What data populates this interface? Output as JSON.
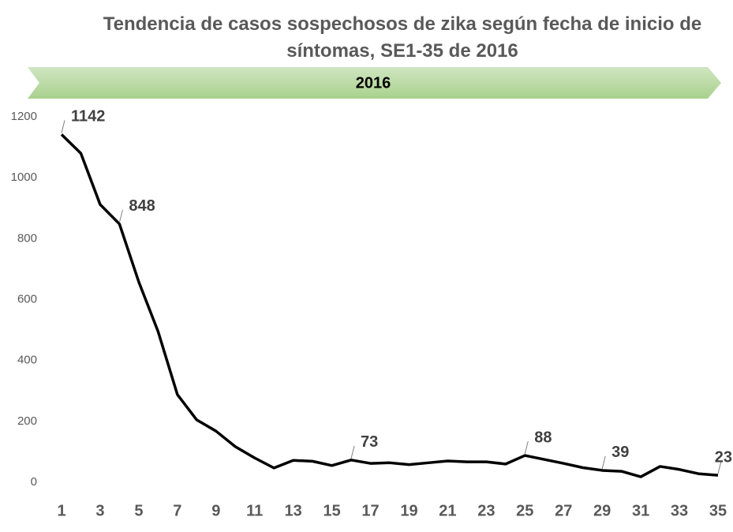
{
  "chart_data": {
    "type": "line",
    "title": "Tendencia de casos sospechosos de zika según fecha de inicio de síntomas, SE1-35 de 2016",
    "banner": "2016",
    "banner_color": "#a9d18e",
    "categories": [
      "1",
      null,
      "3",
      null,
      "5",
      null,
      "7",
      null,
      "9",
      null,
      "11",
      null,
      "13",
      null,
      "15",
      null,
      "17",
      null,
      "19",
      null,
      "21",
      null,
      "23",
      null,
      "25",
      null,
      "27",
      null,
      "29",
      null,
      "31",
      null,
      "33",
      null,
      "35"
    ],
    "series": [
      {
        "name": "Casos",
        "color": "#000000",
        "values": [
          1142,
          1080,
          912,
          848,
          658,
          495,
          288,
          205,
          168,
          117,
          80,
          47,
          72,
          69,
          55,
          73,
          62,
          64,
          58,
          64,
          70,
          67,
          67,
          60,
          88,
          75,
          62,
          48,
          39,
          36,
          18,
          52,
          42,
          28,
          23
        ],
        "value_labels": [
          "1142",
          null,
          null,
          "848",
          null,
          null,
          null,
          null,
          null,
          null,
          null,
          null,
          null,
          null,
          null,
          "73",
          null,
          null,
          null,
          null,
          null,
          null,
          null,
          null,
          "88",
          null,
          null,
          null,
          "39",
          null,
          null,
          null,
          null,
          null,
          "23"
        ]
      }
    ],
    "ylim": [
      0,
      1200
    ],
    "yticks": [
      0,
      200,
      400,
      600,
      800,
      1000,
      1200
    ],
    "grid": false
  }
}
